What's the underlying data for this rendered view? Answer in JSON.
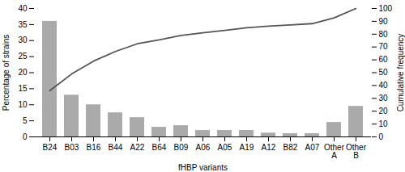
{
  "chart_data": {
    "type": "bar",
    "xlabel": "fHBP variants",
    "ylabel": "Percentage of strains",
    "y2label": "Cumulative frequency",
    "categories": [
      "B24",
      "B03",
      "B16",
      "B44",
      "A22",
      "B64",
      "B09",
      "A06",
      "A05",
      "A19",
      "A12",
      "B82",
      "A07",
      "Other\nA",
      "Other\nB"
    ],
    "series": [
      {
        "type": "bar",
        "color": "#aaaaaa",
        "values": [
          36,
          13,
          10,
          7.5,
          6,
          3,
          3.5,
          2,
          2,
          2,
          1.2,
          1,
          1,
          4.5,
          9.5
        ]
      },
      {
        "type": "line",
        "axis": "y2",
        "color": "#555555",
        "values": [
          36,
          49,
          59,
          66.5,
          72.5,
          75.5,
          79,
          81,
          83,
          85,
          86.2,
          87.2,
          88.2,
          92.7,
          100
        ]
      }
    ],
    "ylim": [
      0,
      40
    ],
    "yticks": [
      0,
      5,
      10,
      15,
      20,
      25,
      30,
      35,
      40
    ],
    "y2lim": [
      0,
      100
    ],
    "y2ticks": [
      0,
      10,
      20,
      30,
      40,
      50,
      60,
      70,
      80,
      90,
      100
    ],
    "grid": false
  }
}
